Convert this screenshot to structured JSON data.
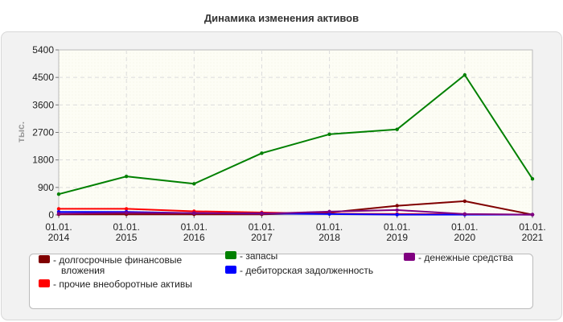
{
  "chart_data": {
    "type": "line",
    "title": "Динамика изменения активов",
    "ylabel": "тыс.",
    "ylim": [
      0,
      5400
    ],
    "yticks": [
      0,
      900,
      1800,
      2700,
      3600,
      4500,
      5400
    ],
    "x": [
      "01.01.\n2014",
      "01.01.\n2015",
      "01.01.\n2016",
      "01.01.\n2017",
      "01.01.\n2018",
      "01.01.\n2019",
      "01.01.\n2020",
      "01.01.\n2021"
    ],
    "grid": true,
    "legend_position": "bottom",
    "series": [
      {
        "name": "долгосрочные финансовые вложения",
        "color": "#800000",
        "values": [
          20,
          20,
          20,
          20,
          80,
          300,
          450,
          10
        ]
      },
      {
        "name": "прочие внеоборотные активы",
        "color": "#ff0000",
        "values": [
          200,
          200,
          120,
          80,
          40,
          30,
          20,
          10
        ]
      },
      {
        "name": "запасы",
        "color": "#008000",
        "values": [
          680,
          1260,
          1020,
          2020,
          2640,
          2800,
          4580,
          1180
        ]
      },
      {
        "name": "дебиторская задолженность",
        "color": "#0000ff",
        "values": [
          100,
          100,
          60,
          50,
          30,
          10,
          10,
          10
        ]
      },
      {
        "name": "денежные средства",
        "color": "#800080",
        "values": [
          40,
          70,
          60,
          40,
          110,
          160,
          30,
          10
        ]
      }
    ]
  }
}
